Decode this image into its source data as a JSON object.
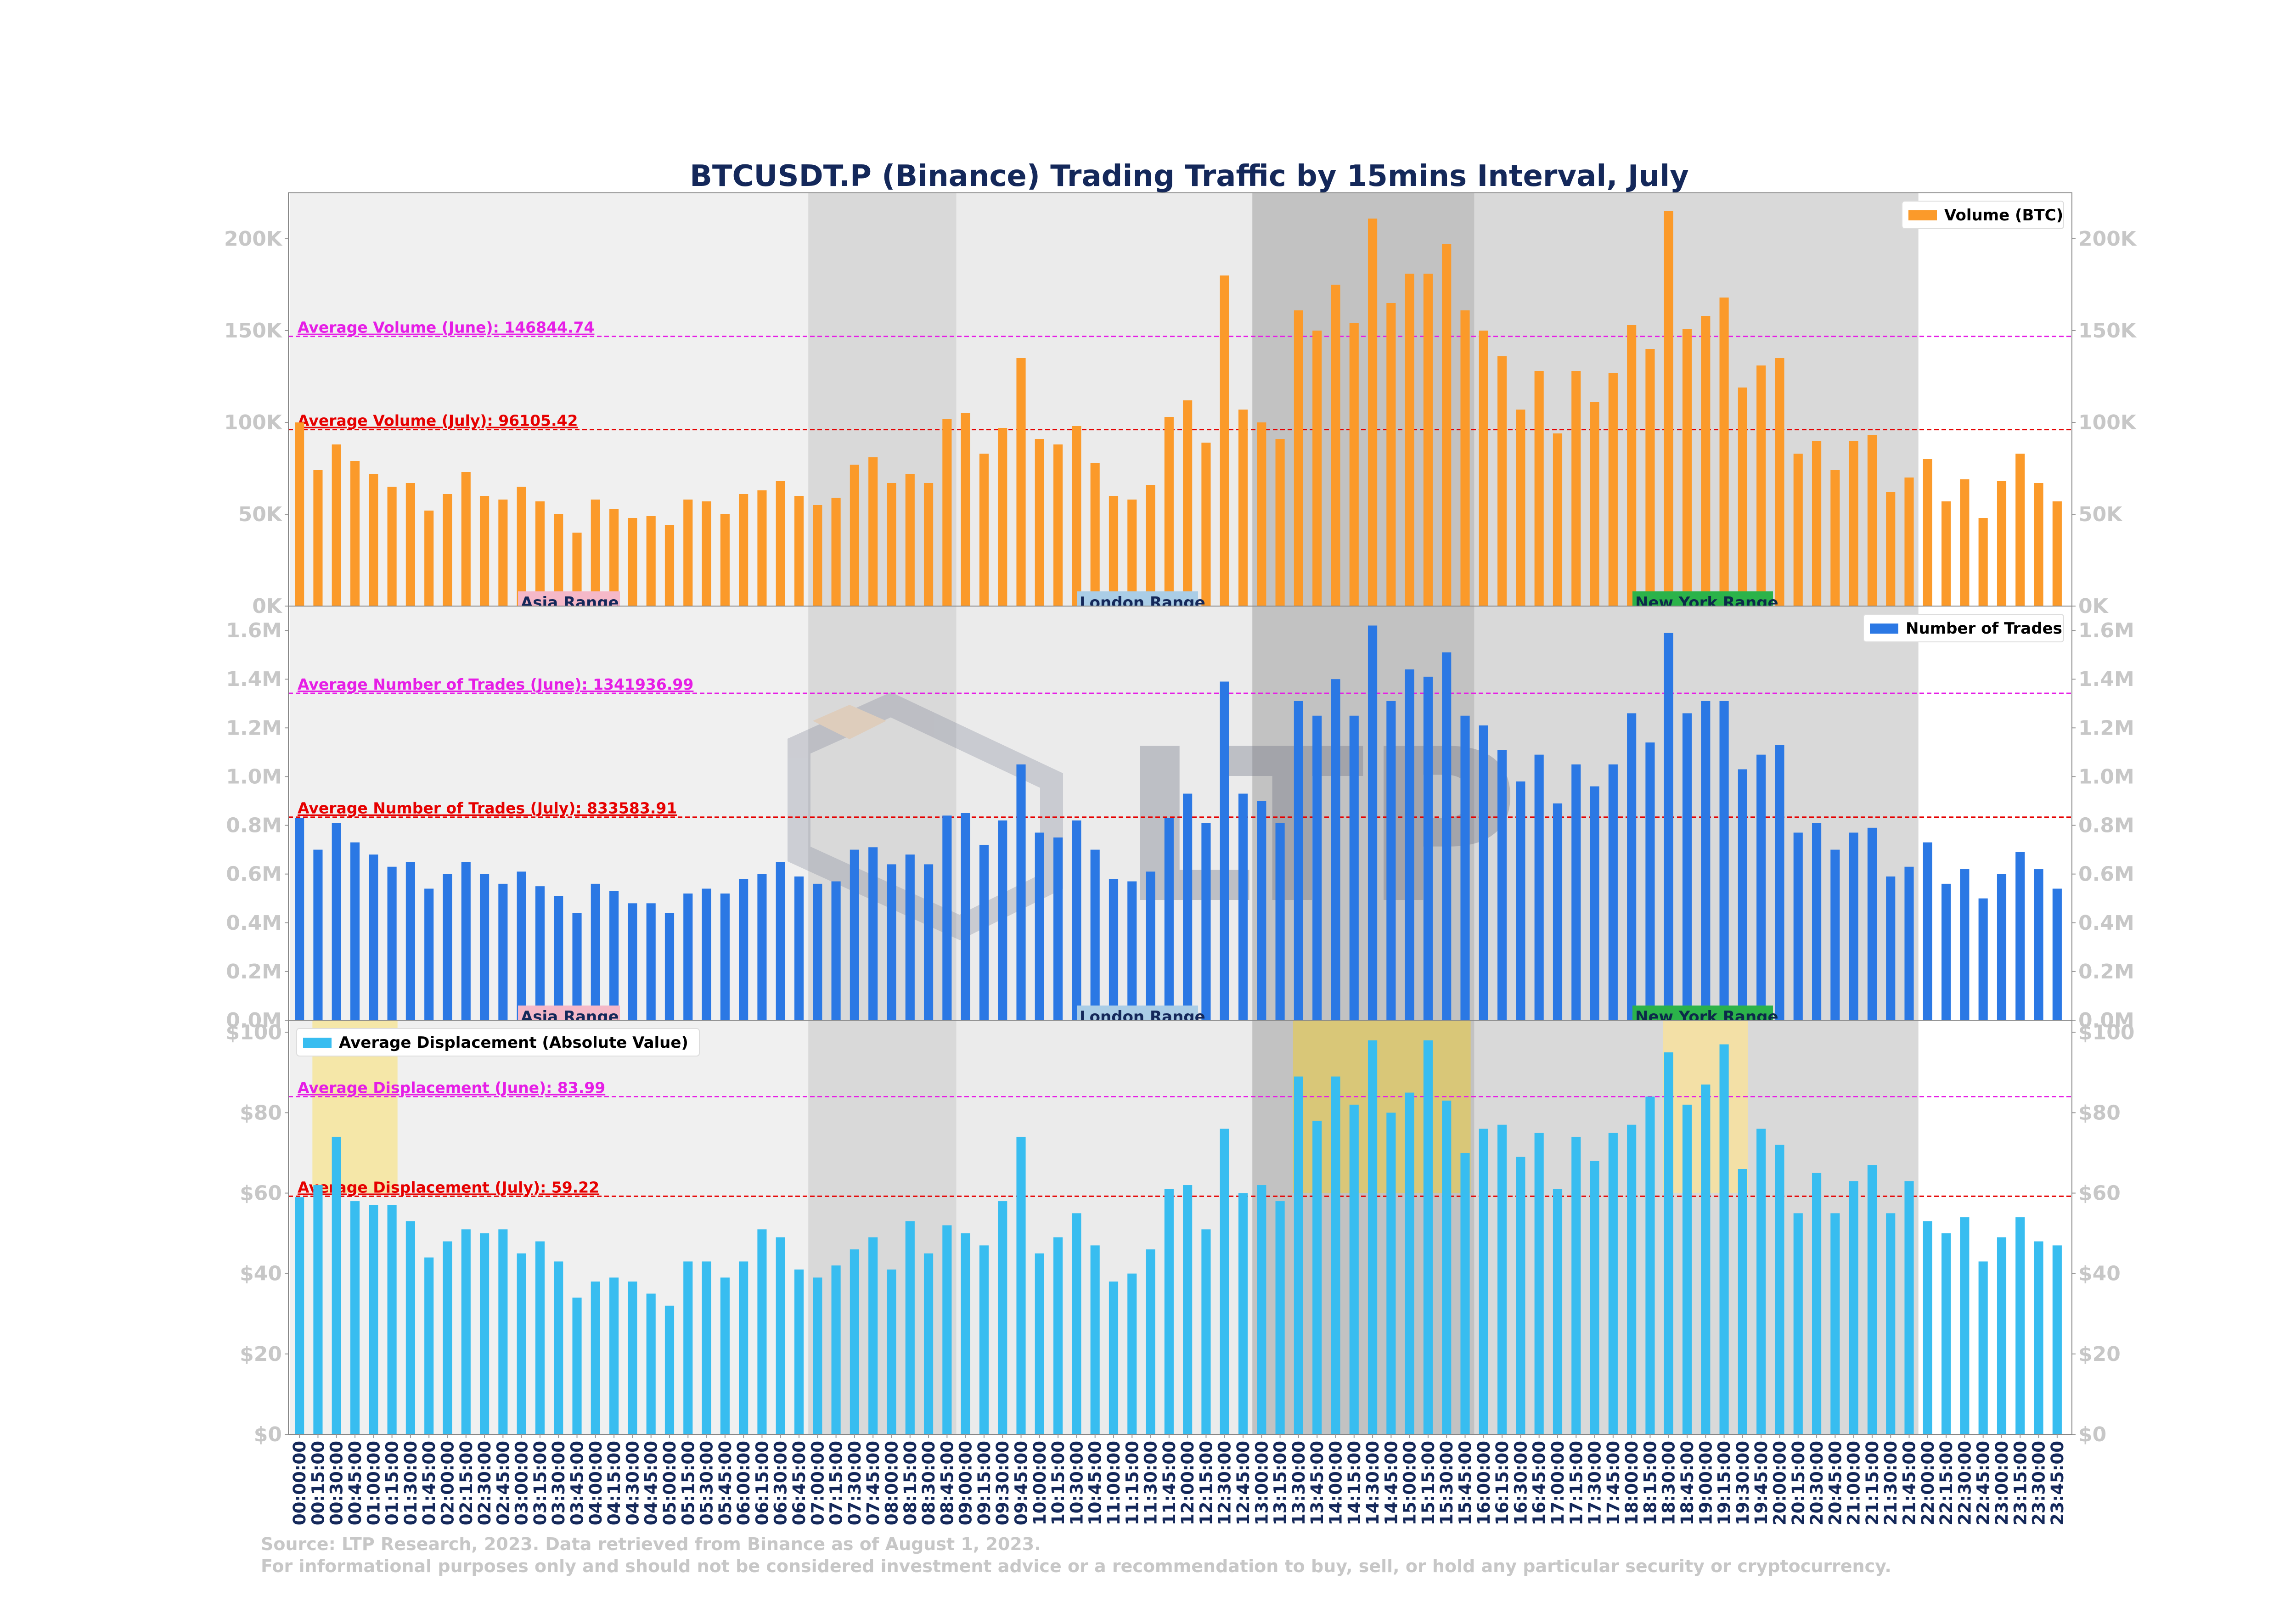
{
  "title": "BTCUSDT.P (Binance) Trading Traffic by 15mins Interval, July",
  "footer": {
    "line1": "Source: LTP Research, 2023. Data retrieved from Binance as of August 1, 2023.",
    "line2": "For informational purposes only and should not be considered investment advice or a recommendation to buy, sell, or hold any particular security or cryptocurrency."
  },
  "watermark": "LTP",
  "sessions": [
    {
      "label": "Asia Range",
      "label_color": "#f5b8c8",
      "shade": "#f0f0f0",
      "start": "00:00:00",
      "end": "07:00:00"
    },
    {
      "label": "",
      "label_color": "",
      "shade": "#d9d9d9",
      "start": "07:00:00",
      "end": "09:00:00"
    },
    {
      "label": "London Range",
      "label_color": "#aacde6",
      "shade": "#ebebeb",
      "start": "09:00:00",
      "end": "13:00:00"
    },
    {
      "label": "",
      "label_color": "",
      "shade": "#c2c2c2",
      "start": "13:00:00",
      "end": "16:00:00"
    },
    {
      "label": "New York Range",
      "label_color": "#2bb34a",
      "shade": "#d9d9d9",
      "start": "16:00:00",
      "end": "22:00:00"
    }
  ],
  "displacement_highlights": [
    {
      "start": "00:15:00",
      "end": "01:15:00",
      "color": "#f5e6a0"
    },
    {
      "start": "13:30:00",
      "end": "15:45:00",
      "color": "#dcc870"
    },
    {
      "start": "18:30:00",
      "end": "19:30:00",
      "color": "#f5e0a0"
    }
  ],
  "chart_data": [
    {
      "type": "bar",
      "categories": [
        "00:00:00",
        "00:15:00",
        "00:30:00",
        "00:45:00",
        "01:00:00",
        "01:15:00",
        "01:30:00",
        "01:45:00",
        "02:00:00",
        "02:15:00",
        "02:30:00",
        "02:45:00",
        "03:00:00",
        "03:15:00",
        "03:30:00",
        "03:45:00",
        "04:00:00",
        "04:15:00",
        "04:30:00",
        "04:45:00",
        "05:00:00",
        "05:15:00",
        "05:30:00",
        "05:45:00",
        "06:00:00",
        "06:15:00",
        "06:30:00",
        "06:45:00",
        "07:00:00",
        "07:15:00",
        "07:30:00",
        "07:45:00",
        "08:00:00",
        "08:15:00",
        "08:30:00",
        "08:45:00",
        "09:00:00",
        "09:15:00",
        "09:30:00",
        "09:45:00",
        "10:00:00",
        "10:15:00",
        "10:30:00",
        "10:45:00",
        "11:00:00",
        "11:15:00",
        "11:30:00",
        "11:45:00",
        "12:00:00",
        "12:15:00",
        "12:30:00",
        "12:45:00",
        "13:00:00",
        "13:15:00",
        "13:30:00",
        "13:45:00",
        "14:00:00",
        "14:15:00",
        "14:30:00",
        "14:45:00",
        "15:00:00",
        "15:15:00",
        "15:30:00",
        "15:45:00",
        "16:00:00",
        "16:15:00",
        "16:30:00",
        "16:45:00",
        "17:00:00",
        "17:15:00",
        "17:30:00",
        "17:45:00",
        "18:00:00",
        "18:15:00",
        "18:30:00",
        "18:45:00",
        "19:00:00",
        "19:15:00",
        "19:30:00",
        "19:45:00",
        "20:00:00",
        "20:15:00",
        "20:30:00",
        "20:45:00",
        "21:00:00",
        "21:15:00",
        "21:30:00",
        "21:45:00",
        "22:00:00",
        "22:15:00",
        "22:30:00",
        "22:45:00",
        "23:00:00",
        "23:15:00",
        "23:30:00",
        "23:45:00"
      ],
      "series": [
        {
          "name": "Volume (BTC)",
          "color": "#fb9a2a",
          "values": [
            100000,
            74000,
            88000,
            79000,
            72000,
            65000,
            67000,
            52000,
            61000,
            73000,
            60000,
            58000,
            65000,
            57000,
            50000,
            40000,
            58000,
            53000,
            48000,
            49000,
            44000,
            58000,
            57000,
            50000,
            61000,
            63000,
            68000,
            60000,
            55000,
            59000,
            77000,
            81000,
            67000,
            72000,
            67000,
            102000,
            105000,
            83000,
            97000,
            135000,
            91000,
            88000,
            98000,
            78000,
            60000,
            58000,
            66000,
            103000,
            112000,
            89000,
            180000,
            107000,
            100000,
            91000,
            161000,
            150000,
            175000,
            154000,
            211000,
            165000,
            181000,
            181000,
            197000,
            161000,
            150000,
            136000,
            107000,
            128000,
            94000,
            128000,
            111000,
            127000,
            153000,
            140000,
            215000,
            151000,
            158000,
            168000,
            119000,
            131000,
            135000,
            83000,
            90000,
            74000,
            90000,
            93000,
            62000,
            70000,
            80000,
            57000,
            69000,
            48000,
            68000,
            83000,
            67000,
            57000
          ]
        }
      ],
      "ylim": [
        0,
        225000
      ],
      "yticks": [
        "0K",
        "50K",
        "100K",
        "150K",
        "200K"
      ],
      "ytick_values": [
        0,
        50000,
        100000,
        150000,
        200000
      ],
      "reference_lines": [
        {
          "label": "Average Volume (June): 146844.74",
          "value": 146844.74,
          "color": "#e61ee6"
        },
        {
          "label": "Average Volume (July): 96105.42",
          "value": 96105.42,
          "color": "#e60000"
        }
      ],
      "legend": "top-right"
    },
    {
      "type": "bar",
      "categories": [
        "00:00:00",
        "00:15:00",
        "00:30:00",
        "00:45:00",
        "01:00:00",
        "01:15:00",
        "01:30:00",
        "01:45:00",
        "02:00:00",
        "02:15:00",
        "02:30:00",
        "02:45:00",
        "03:00:00",
        "03:15:00",
        "03:30:00",
        "03:45:00",
        "04:00:00",
        "04:15:00",
        "04:30:00",
        "04:45:00",
        "05:00:00",
        "05:15:00",
        "05:30:00",
        "05:45:00",
        "06:00:00",
        "06:15:00",
        "06:30:00",
        "06:45:00",
        "07:00:00",
        "07:15:00",
        "07:30:00",
        "07:45:00",
        "08:00:00",
        "08:15:00",
        "08:30:00",
        "08:45:00",
        "09:00:00",
        "09:15:00",
        "09:30:00",
        "09:45:00",
        "10:00:00",
        "10:15:00",
        "10:30:00",
        "10:45:00",
        "11:00:00",
        "11:15:00",
        "11:30:00",
        "11:45:00",
        "12:00:00",
        "12:15:00",
        "12:30:00",
        "12:45:00",
        "13:00:00",
        "13:15:00",
        "13:30:00",
        "13:45:00",
        "14:00:00",
        "14:15:00",
        "14:30:00",
        "14:45:00",
        "15:00:00",
        "15:15:00",
        "15:30:00",
        "15:45:00",
        "16:00:00",
        "16:15:00",
        "16:30:00",
        "16:45:00",
        "17:00:00",
        "17:15:00",
        "17:30:00",
        "17:45:00",
        "18:00:00",
        "18:15:00",
        "18:30:00",
        "18:45:00",
        "19:00:00",
        "19:15:00",
        "19:30:00",
        "19:45:00",
        "20:00:00",
        "20:15:00",
        "20:30:00",
        "20:45:00",
        "21:00:00",
        "21:15:00",
        "21:30:00",
        "21:45:00",
        "22:00:00",
        "22:15:00",
        "22:30:00",
        "22:45:00",
        "23:00:00",
        "23:15:00",
        "23:30:00",
        "23:45:00"
      ],
      "series": [
        {
          "name": "Number of Trades",
          "color": "#2b78e4",
          "values": [
            830000,
            700000,
            810000,
            730000,
            680000,
            630000,
            650000,
            540000,
            600000,
            650000,
            600000,
            560000,
            610000,
            550000,
            510000,
            440000,
            560000,
            530000,
            480000,
            480000,
            440000,
            520000,
            540000,
            520000,
            580000,
            600000,
            650000,
            590000,
            560000,
            570000,
            700000,
            710000,
            640000,
            680000,
            640000,
            840000,
            850000,
            720000,
            820000,
            1050000,
            770000,
            750000,
            820000,
            700000,
            580000,
            570000,
            610000,
            830000,
            930000,
            810000,
            1390000,
            930000,
            900000,
            810000,
            1310000,
            1250000,
            1400000,
            1250000,
            1620000,
            1310000,
            1440000,
            1410000,
            1510000,
            1250000,
            1210000,
            1110000,
            980000,
            1090000,
            890000,
            1050000,
            960000,
            1050000,
            1260000,
            1140000,
            1590000,
            1260000,
            1310000,
            1310000,
            1030000,
            1090000,
            1130000,
            770000,
            810000,
            700000,
            770000,
            790000,
            590000,
            630000,
            730000,
            560000,
            620000,
            500000,
            600000,
            690000,
            620000,
            540000
          ]
        }
      ],
      "ylim": [
        0,
        1700000
      ],
      "yticks": [
        "0.0M",
        "0.2M",
        "0.4M",
        "0.6M",
        "0.8M",
        "1.0M",
        "1.2M",
        "1.4M",
        "1.6M"
      ],
      "ytick_values": [
        0,
        200000,
        400000,
        600000,
        800000,
        1000000,
        1200000,
        1400000,
        1600000
      ],
      "reference_lines": [
        {
          "label": "Average Number of Trades (June): 1341936.99",
          "value": 1341936.99,
          "color": "#e61ee6"
        },
        {
          "label": "Average Number of Trades (July): 833583.91",
          "value": 833583.91,
          "color": "#e60000"
        }
      ],
      "legend": "top-right"
    },
    {
      "type": "bar",
      "categories": [
        "00:00:00",
        "00:15:00",
        "00:30:00",
        "00:45:00",
        "01:00:00",
        "01:15:00",
        "01:30:00",
        "01:45:00",
        "02:00:00",
        "02:15:00",
        "02:30:00",
        "02:45:00",
        "03:00:00",
        "03:15:00",
        "03:30:00",
        "03:45:00",
        "04:00:00",
        "04:15:00",
        "04:30:00",
        "04:45:00",
        "05:00:00",
        "05:15:00",
        "05:30:00",
        "05:45:00",
        "06:00:00",
        "06:15:00",
        "06:30:00",
        "06:45:00",
        "07:00:00",
        "07:15:00",
        "07:30:00",
        "07:45:00",
        "08:00:00",
        "08:15:00",
        "08:30:00",
        "08:45:00",
        "09:00:00",
        "09:15:00",
        "09:30:00",
        "09:45:00",
        "10:00:00",
        "10:15:00",
        "10:30:00",
        "10:45:00",
        "11:00:00",
        "11:15:00",
        "11:30:00",
        "11:45:00",
        "12:00:00",
        "12:15:00",
        "12:30:00",
        "12:45:00",
        "13:00:00",
        "13:15:00",
        "13:30:00",
        "13:45:00",
        "14:00:00",
        "14:15:00",
        "14:30:00",
        "14:45:00",
        "15:00:00",
        "15:15:00",
        "15:30:00",
        "15:45:00",
        "16:00:00",
        "16:15:00",
        "16:30:00",
        "16:45:00",
        "17:00:00",
        "17:15:00",
        "17:30:00",
        "17:45:00",
        "18:00:00",
        "18:15:00",
        "18:30:00",
        "18:45:00",
        "19:00:00",
        "19:15:00",
        "19:30:00",
        "19:45:00",
        "20:00:00",
        "20:15:00",
        "20:30:00",
        "20:45:00",
        "21:00:00",
        "21:15:00",
        "21:30:00",
        "21:45:00",
        "22:00:00",
        "22:15:00",
        "22:30:00",
        "22:45:00",
        "23:00:00",
        "23:15:00",
        "23:30:00",
        "23:45:00"
      ],
      "series": [
        {
          "name": "Average Displacement (Absolute Value)",
          "color": "#38bdf0",
          "values": [
            59,
            62,
            74,
            58,
            57,
            57,
            53,
            44,
            48,
            51,
            50,
            51,
            45,
            48,
            43,
            34,
            38,
            39,
            38,
            35,
            32,
            43,
            43,
            39,
            43,
            51,
            49,
            41,
            39,
            42,
            46,
            49,
            41,
            53,
            45,
            52,
            50,
            47,
            58,
            74,
            45,
            49,
            55,
            47,
            38,
            40,
            46,
            61,
            62,
            51,
            76,
            60,
            62,
            58,
            89,
            78,
            89,
            82,
            98,
            80,
            85,
            98,
            83,
            70,
            76,
            77,
            69,
            75,
            61,
            74,
            68,
            75,
            77,
            84,
            95,
            82,
            87,
            97,
            66,
            76,
            72,
            55,
            65,
            55,
            63,
            67,
            55,
            63,
            53,
            50,
            54,
            43,
            49,
            54,
            48,
            47
          ]
        }
      ],
      "ylim": [
        0,
        103
      ],
      "yticks": [
        "$0",
        "$20",
        "$40",
        "$60",
        "$80",
        "$100"
      ],
      "ytick_values": [
        0,
        20,
        40,
        60,
        80,
        100
      ],
      "reference_lines": [
        {
          "label": "Average Displacement (June): 83.99",
          "value": 83.99,
          "color": "#e61ee6"
        },
        {
          "label": "Average Displacement (July): 59.22",
          "value": 59.22,
          "color": "#e60000"
        }
      ],
      "legend": "top-left"
    }
  ]
}
